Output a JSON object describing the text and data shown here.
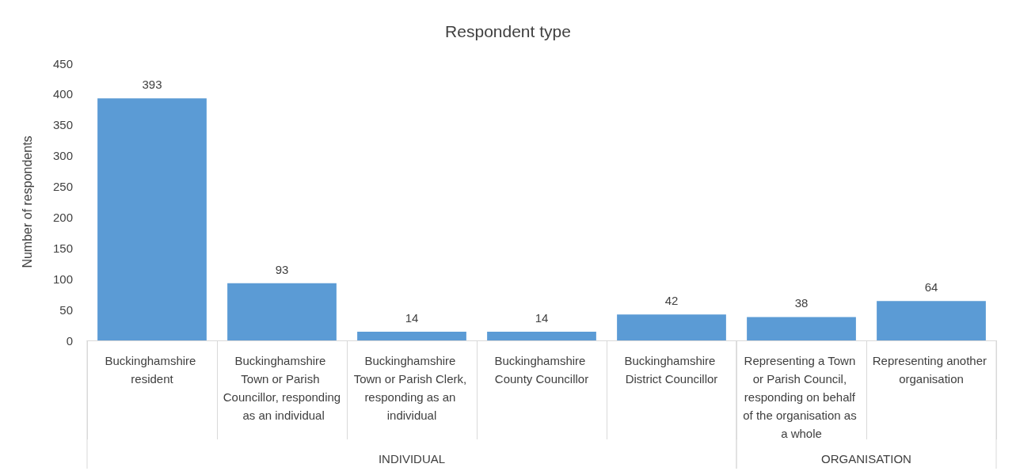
{
  "chart_data": {
    "type": "bar",
    "title": "Respondent type",
    "ylabel": "Number of respondents",
    "categories": [
      "Buckinghamshire resident",
      "Buckinghamshire Town or Parish Councillor, responding as an individual",
      "Buckinghamshire Town or Parish Clerk, responding as an individual",
      "Buckinghamshire County Councillor",
      "Buckinghamshire District Councillor",
      "Representing a Town or Parish Council, responding on behalf of the organisation as a whole",
      "Representing another organisation"
    ],
    "values": [
      393,
      93,
      14,
      14,
      42,
      38,
      64
    ],
    "color": "#5b9bd5",
    "ylim": [
      0,
      450
    ],
    "yticks": [
      0,
      50,
      100,
      150,
      200,
      250,
      300,
      350,
      400,
      450
    ],
    "grid": false,
    "data_labels": true,
    "annotations": [
      "INDIVIDUAL",
      "ORGANISATION"
    ]
  }
}
